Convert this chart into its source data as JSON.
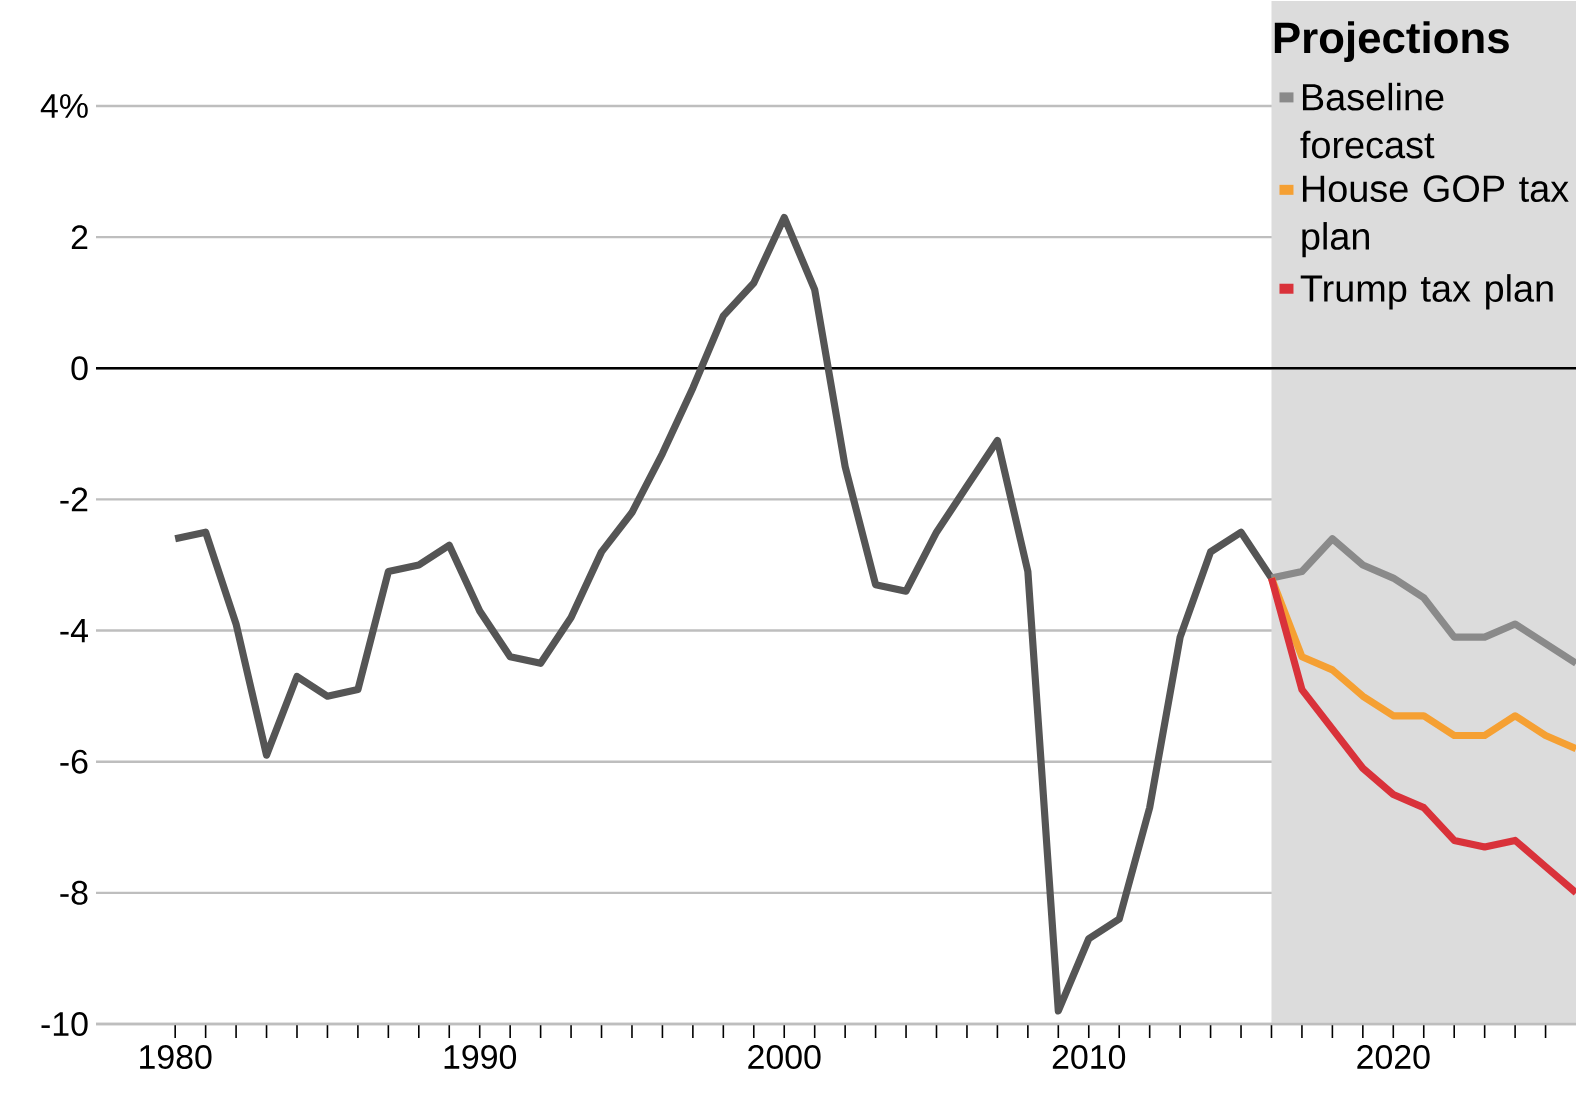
{
  "chart_data": {
    "type": "line",
    "ylim": [
      -10,
      4
    ],
    "xlim": [
      1977.4,
      2026
    ],
    "yticks": [
      {
        "value": -10,
        "label": "-10"
      },
      {
        "value": -8,
        "label": "-8"
      },
      {
        "value": -6,
        "label": "-6"
      },
      {
        "value": -4,
        "label": "-4"
      },
      {
        "value": -2,
        "label": "-2"
      },
      0,
      2,
      {
        "value": 4,
        "label": "4%"
      }
    ],
    "xticks": [
      {
        "value": 1980,
        "label": "1980"
      },
      {
        "value": 1981,
        "label": null
      },
      {
        "value": 1982,
        "label": null
      },
      {
        "value": 1983,
        "label": null
      },
      {
        "value": 1984,
        "label": null
      },
      {
        "value": 1985,
        "label": null
      },
      {
        "value": 1986,
        "label": null
      },
      {
        "value": 1987,
        "label": null
      },
      {
        "value": 1988,
        "label": null
      },
      {
        "value": 1989,
        "label": null
      },
      {
        "value": 1990,
        "label": "1990"
      },
      {
        "value": 1991,
        "label": null
      },
      {
        "value": 1992,
        "label": null
      },
      {
        "value": 1993,
        "label": null
      },
      {
        "value": 1994,
        "label": null
      },
      {
        "value": 1995,
        "label": null
      },
      {
        "value": 1996,
        "label": null
      },
      {
        "value": 1997,
        "label": null
      },
      {
        "value": 1998,
        "label": null
      },
      {
        "value": 1999,
        "label": null
      },
      {
        "value": 2000,
        "label": "2000"
      },
      {
        "value": 2001,
        "label": null
      },
      {
        "value": 2002,
        "label": null
      },
      {
        "value": 2003,
        "label": null
      },
      {
        "value": 2004,
        "label": null
      },
      {
        "value": 2005,
        "label": null
      },
      {
        "value": 2006,
        "label": null
      },
      {
        "value": 2007,
        "label": null
      },
      {
        "value": 2008,
        "label": null
      },
      {
        "value": 2009,
        "label": null
      },
      {
        "value": 2010,
        "label": "2010"
      },
      {
        "value": 2011,
        "label": null
      },
      {
        "value": 2012,
        "label": null
      },
      {
        "value": 2013,
        "label": null
      },
      {
        "value": 2014,
        "label": null
      },
      {
        "value": 2015,
        "label": null
      },
      {
        "value": 2016,
        "label": null
      },
      {
        "value": 2017,
        "label": null
      },
      {
        "value": 2018,
        "label": null
      },
      {
        "value": 2019,
        "label": null
      },
      {
        "value": 2020,
        "label": "2020"
      },
      {
        "value": 2021,
        "label": null
      },
      {
        "value": 2022,
        "label": null
      },
      {
        "value": 2023,
        "label": null
      },
      {
        "value": 2024,
        "label": null
      },
      {
        "value": 2025,
        "label": null
      }
    ],
    "grid": "y",
    "legend": "top right",
    "line_style": "solid",
    "marker": "none",
    "ref_lines": [
      {
        "axis": "y",
        "value": 0,
        "color": "#000000"
      }
    ],
    "bands": [
      {
        "axis": "x",
        "from": 2016,
        "to": 2026,
        "label": "Projections",
        "color": "#dcdcdc"
      }
    ],
    "series": [
      {
        "color": "#555555",
        "x": [
          1980,
          1981,
          1982,
          1983,
          1984,
          1985,
          1986,
          1987,
          1988,
          1989,
          1990,
          1991,
          1992,
          1993,
          1994,
          1995,
          1996,
          1997,
          1998,
          1999,
          2000,
          2001,
          2002,
          2003,
          2004,
          2005,
          2006,
          2007,
          2008,
          2009,
          2010,
          2011,
          2012,
          2013,
          2014,
          2015,
          2016
        ],
        "values": [
          -2.6,
          -2.5,
          -3.9,
          -5.9,
          -4.7,
          -5.0,
          -4.9,
          -3.1,
          -3.0,
          -2.7,
          -3.7,
          -4.4,
          -4.5,
          -3.8,
          -2.8,
          -2.2,
          -1.3,
          -0.3,
          0.8,
          1.3,
          2.3,
          1.2,
          -1.5,
          -3.3,
          -3.4,
          -2.5,
          -1.8,
          -1.1,
          -3.1,
          -9.8,
          -8.7,
          -8.4,
          -6.7,
          -4.1,
          -2.8,
          -2.5,
          -3.2
        ]
      },
      {
        "name": "Baseline forecast",
        "color": "#8a8a8a",
        "x": [
          2016,
          2017,
          2018,
          2019,
          2020,
          2021,
          2022,
          2023,
          2024,
          2025,
          2026
        ],
        "values": [
          -3.2,
          -3.1,
          -2.6,
          -3.0,
          -3.2,
          -3.5,
          -4.1,
          -4.1,
          -3.9,
          -4.2,
          -4.5
        ]
      },
      {
        "name": "House GOP tax plan",
        "color": "#f5a033",
        "x": [
          2016,
          2017,
          2018,
          2019,
          2020,
          2021,
          2022,
          2023,
          2024,
          2025,
          2026
        ],
        "values": [
          -3.2,
          -4.4,
          -4.6,
          -5.0,
          -5.3,
          -5.3,
          -5.6,
          -5.6,
          -5.3,
          -5.6,
          -5.8
        ]
      },
      {
        "name": "Trump tax plan",
        "color": "#d9323a",
        "x": [
          2016,
          2017,
          2018,
          2019,
          2020,
          2021,
          2022,
          2023,
          2024,
          2025,
          2026
        ],
        "values": [
          -3.2,
          -4.9,
          -5.5,
          -6.1,
          -6.5,
          -6.7,
          -7.2,
          -7.3,
          -7.2,
          -7.6,
          -8.0
        ]
      }
    ]
  }
}
